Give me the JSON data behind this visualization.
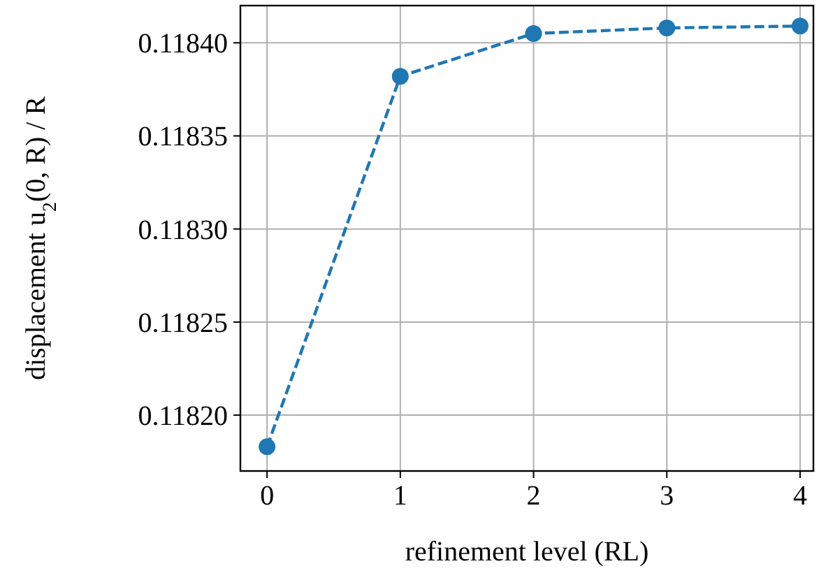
{
  "chart_data": {
    "type": "line",
    "xlabel": "refinement level (RL)",
    "ylabel": "displacement u$_{2}$(0, R) / R",
    "x": [
      0,
      1,
      2,
      3,
      4
    ],
    "series": [
      {
        "color": "#1f77b4",
        "values": [
          0.118183,
          0.118382,
          0.118405,
          0.118408,
          0.118409
        ]
      }
    ],
    "xlim": [
      -0.2,
      4.1
    ],
    "xticks": [
      0,
      1,
      2,
      3,
      4
    ],
    "ylim": [
      0.11817,
      0.11842
    ],
    "yticks": [
      {
        "value": 0.1182,
        "label": "0.11820"
      },
      {
        "value": 0.11825,
        "label": "0.11825"
      },
      {
        "value": 0.1183,
        "label": "0.11830"
      },
      {
        "value": 0.11835,
        "label": "0.11835"
      },
      {
        "value": 0.1184,
        "label": "0.11840"
      }
    ],
    "grid": true,
    "marker": "circle",
    "line_style": "dashed"
  }
}
